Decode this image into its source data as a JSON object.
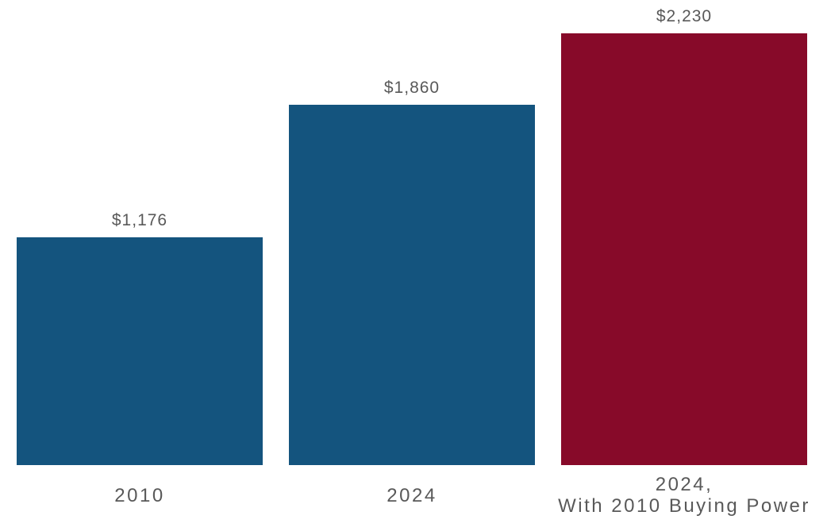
{
  "chart_data": {
    "type": "bar",
    "title": "",
    "xlabel": "",
    "ylabel": "",
    "categories": [
      "2010",
      "2024",
      "2024,\nWith 2010 Buying Power"
    ],
    "values": [
      1176,
      1860,
      2230
    ],
    "value_labels": [
      "$1,176",
      "$1,860",
      "$2,230"
    ],
    "bar_colors": [
      "#14547E",
      "#14547E",
      "#870A29"
    ],
    "label_color": "#595959",
    "background_color": "#FFFFFF",
    "ylim": [
      0,
      2400
    ],
    "grid": false,
    "legend": false,
    "y_axis_visible": false,
    "data_labels_position": "above-bar",
    "category_labels_position": "below-bar"
  }
}
